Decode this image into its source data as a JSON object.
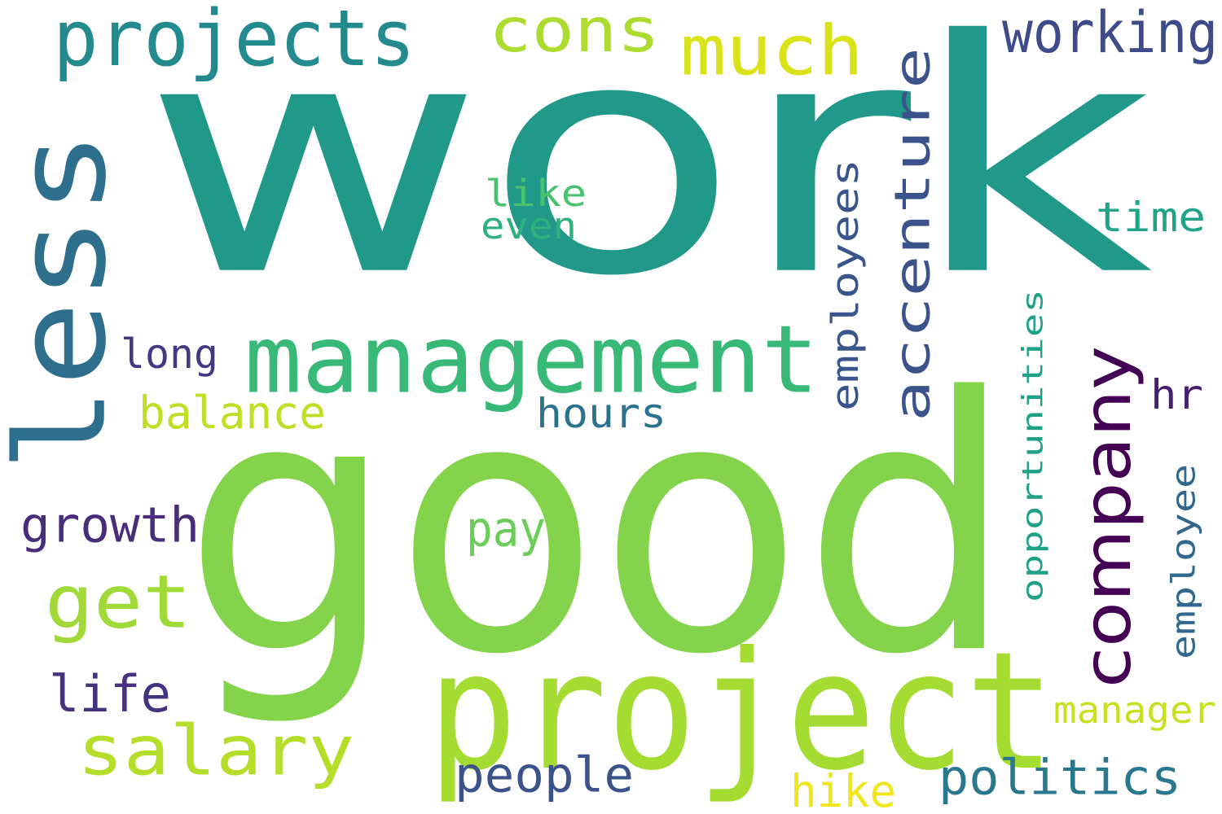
{
  "words": [
    {
      "text": "work",
      "color": "#21998a",
      "orientation": "horizontal"
    },
    {
      "text": "good",
      "color": "#84d44b",
      "orientation": "horizontal"
    },
    {
      "text": "project",
      "color": "#a4dc31",
      "orientation": "horizontal"
    },
    {
      "text": "management",
      "color": "#38b977",
      "orientation": "horizontal"
    },
    {
      "text": "less",
      "color": "#2e6f8e",
      "orientation": "vertical"
    },
    {
      "text": "projects",
      "color": "#238a8d",
      "orientation": "horizontal"
    },
    {
      "text": "cons",
      "color": "#addc30",
      "orientation": "horizontal"
    },
    {
      "text": "much",
      "color": "#dae319",
      "orientation": "horizontal"
    },
    {
      "text": "accenture",
      "color": "#3b528b",
      "orientation": "vertical"
    },
    {
      "text": "company",
      "color": "#440154",
      "orientation": "vertical"
    },
    {
      "text": "salary",
      "color": "#b5de2b",
      "orientation": "horizontal"
    },
    {
      "text": "get",
      "color": "#a0da39",
      "orientation": "horizontal"
    },
    {
      "text": "working",
      "color": "#3e4a89",
      "orientation": "horizontal"
    },
    {
      "text": "employees",
      "color": "#39558c",
      "orientation": "vertical"
    },
    {
      "text": "like",
      "color": "#4ac16d",
      "orientation": "horizontal"
    },
    {
      "text": "even",
      "color": "#2db27d",
      "orientation": "horizontal"
    },
    {
      "text": "time",
      "color": "#20a386",
      "orientation": "horizontal"
    },
    {
      "text": "opportunities",
      "color": "#1fa187",
      "orientation": "vertical"
    },
    {
      "text": "long",
      "color": "#453781",
      "orientation": "horizontal"
    },
    {
      "text": "balance",
      "color": "#bddf26",
      "orientation": "horizontal"
    },
    {
      "text": "hours",
      "color": "#2c718e",
      "orientation": "horizontal"
    },
    {
      "text": "hr",
      "color": "#481f70",
      "orientation": "horizontal"
    },
    {
      "text": "growth",
      "color": "#472d7b",
      "orientation": "horizontal"
    },
    {
      "text": "pay",
      "color": "#6ccd5a",
      "orientation": "horizontal"
    },
    {
      "text": "employee",
      "color": "#31688e",
      "orientation": "vertical"
    },
    {
      "text": "life",
      "color": "#46327e",
      "orientation": "horizontal"
    },
    {
      "text": "manager",
      "color": "#c8e020",
      "orientation": "horizontal"
    },
    {
      "text": "people",
      "color": "#3b528b",
      "orientation": "horizontal"
    },
    {
      "text": "politics",
      "color": "#2a788e",
      "orientation": "horizontal"
    },
    {
      "text": "hike",
      "color": "#f1e51d",
      "orientation": "horizontal"
    }
  ]
}
